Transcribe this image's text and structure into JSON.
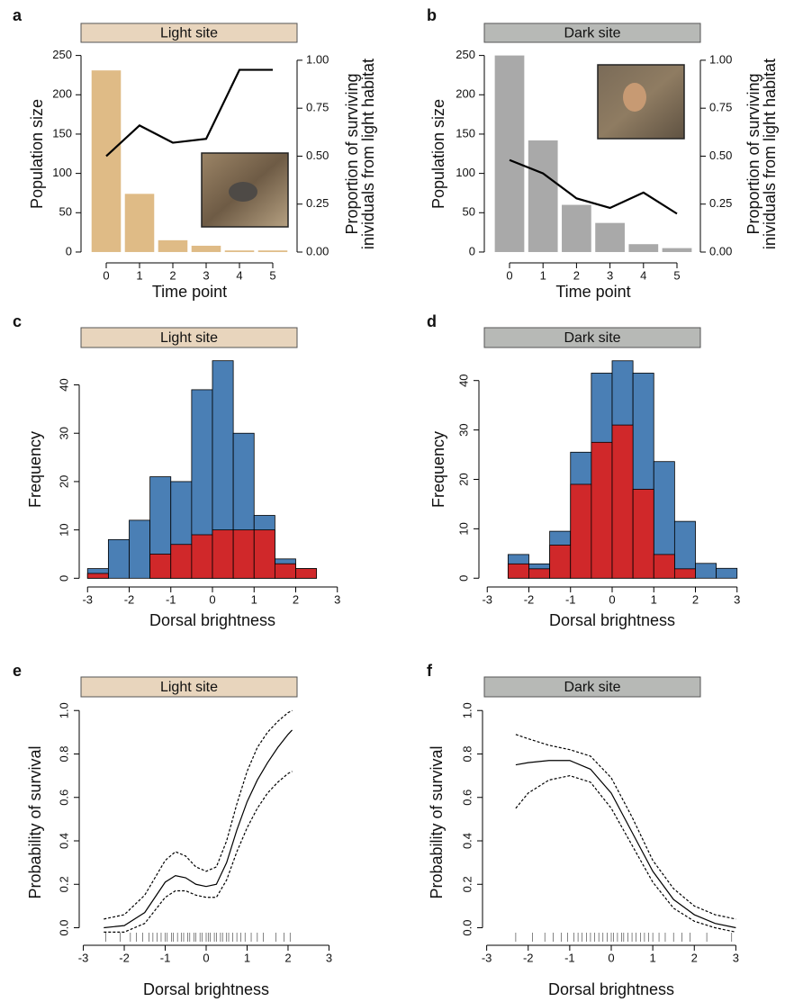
{
  "chart_data": [
    {
      "panel": "a",
      "header": "Light site",
      "header_color": "#e8d5bd",
      "type": "combo",
      "categories": [
        "0",
        "1",
        "2",
        "3",
        "4",
        "5"
      ],
      "xlabel": "Time point",
      "ylabel": "Population size",
      "y2label": [
        "Proportion of surviving",
        "inividuals from light habitat"
      ],
      "ylim": [
        -11.5,
        261
      ],
      "yticks": [
        0,
        50,
        100,
        150,
        200,
        250
      ],
      "y2lim": [
        -0.047,
        1.07
      ],
      "y2ticks": [
        {
          "value": 0,
          "label": "0.00"
        },
        {
          "value": 0.25,
          "label": "0.25"
        },
        {
          "value": 0.5,
          "label": "0.50"
        },
        {
          "value": 0.75,
          "label": "0.75"
        },
        {
          "value": 1,
          "label": "1.00"
        }
      ],
      "series": [
        {
          "type": "bar",
          "color": "#dfbb86",
          "values": [
            231,
            74,
            15,
            8,
            2,
            2
          ]
        },
        {
          "type": "line",
          "axis": "y2",
          "color": "#000000",
          "values": [
            0.5,
            0.66,
            0.57,
            0.59,
            0.95,
            0.95
          ]
        }
      ]
    },
    {
      "panel": "b",
      "header": "Dark site",
      "header_color": "#b7b9b6",
      "type": "combo",
      "categories": [
        "0",
        "1",
        "2",
        "3",
        "4",
        "5"
      ],
      "xlabel": "Time point",
      "ylabel": "Population size",
      "y2label": [
        "Proportion of surviving",
        "inividuals from light habitat"
      ],
      "ylim": [
        -11.5,
        261
      ],
      "yticks": [
        0,
        50,
        100,
        150,
        200,
        250
      ],
      "y2lim": [
        -0.047,
        1.07
      ],
      "y2ticks": [
        {
          "value": 0,
          "label": "0.00"
        },
        {
          "value": 0.25,
          "label": "0.25"
        },
        {
          "value": 0.5,
          "label": "0.50"
        },
        {
          "value": 0.75,
          "label": "0.75"
        },
        {
          "value": 1,
          "label": "1.00"
        }
      ],
      "series": [
        {
          "type": "bar",
          "color": "#a9a9a9",
          "values": [
            250,
            142,
            60,
            37,
            10,
            5
          ]
        },
        {
          "type": "line",
          "axis": "y2",
          "color": "#000000",
          "values": [
            0.48,
            0.41,
            0.28,
            0.23,
            0.31,
            0.2
          ]
        }
      ]
    },
    {
      "panel": "c",
      "header": "Light site",
      "header_color": "#e8d5bd",
      "type": "histogram",
      "xlabel": "Dorsal brightness",
      "ylabel": "Frequency",
      "bins": [
        -3,
        -2.5,
        -2,
        -1.5,
        -1,
        -0.5,
        0,
        0.5,
        1,
        1.5,
        2,
        2.5
      ],
      "xlim": [
        -3.2,
        3.2
      ],
      "xticks": [
        -3,
        -2,
        -1,
        0,
        1,
        2,
        3
      ],
      "ylim": [
        -0.5,
        45.5
      ],
      "yticks": [
        0,
        10,
        20,
        30,
        40
      ],
      "series": [
        {
          "color": "#4a7fb5",
          "values": [
            2,
            8,
            12,
            21,
            20,
            39,
            45,
            30,
            13,
            4,
            2
          ]
        },
        {
          "color": "#d0282a",
          "values": [
            1,
            0,
            0,
            5,
            7,
            9,
            10,
            10,
            10,
            3,
            2
          ]
        }
      ]
    },
    {
      "panel": "d",
      "header": "Dark site",
      "header_color": "#b7b9b6",
      "type": "histogram",
      "xlabel": "Dorsal brightness",
      "ylabel": "Frequency",
      "bins": [
        -3,
        -2.5,
        -2,
        -1.5,
        -1,
        -0.5,
        0,
        0.5,
        1,
        1.5,
        2,
        2.5,
        3
      ],
      "xlim": [
        -3.2,
        3.2
      ],
      "xticks": [
        -3,
        -2,
        -1,
        0,
        1,
        2,
        3
      ],
      "ylim": [
        -0.5,
        44.5
      ],
      "yticks": [
        0,
        10,
        20,
        30,
        40
      ],
      "series": [
        {
          "color": "#4a7fb5",
          "values": [
            0,
            4.8,
            2.9,
            9.5,
            25.5,
            41.5,
            44,
            41.5,
            23.6,
            11.5,
            3,
            2
          ]
        },
        {
          "color": "#d0282a",
          "values": [
            0,
            2.9,
            1.9,
            6.7,
            19,
            27.5,
            31,
            18,
            4.8,
            1.9,
            0,
            0
          ]
        }
      ]
    },
    {
      "panel": "e",
      "header": "Light site",
      "header_color": "#e8d5bd",
      "type": "line",
      "xlabel": "Dorsal brightness",
      "ylabel": "Probability of survival",
      "xlim": [
        -3.1,
        3.1
      ],
      "xticks": [
        -3,
        -2,
        -1,
        0,
        1,
        2,
        3
      ],
      "ylim": [
        -0.06,
        1.03
      ],
      "yticks": [
        {
          "value": 0,
          "label": "0.0"
        },
        {
          "value": 0.2,
          "label": "0.2"
        },
        {
          "value": 0.4,
          "label": "0.4"
        },
        {
          "value": 0.6,
          "label": "0.6"
        },
        {
          "value": 0.8,
          "label": "0.8"
        },
        {
          "value": 1,
          "label": "1.0"
        }
      ],
      "x": [
        -2.5,
        -2,
        -1.5,
        -1,
        -0.75,
        -0.5,
        -0.25,
        0,
        0.25,
        0.5,
        0.75,
        1,
        1.25,
        1.5,
        1.75,
        2,
        2.1
      ],
      "series": [
        {
          "color": "#000000",
          "style": "solid",
          "values": [
            0,
            0.01,
            0.07,
            0.21,
            0.24,
            0.23,
            0.2,
            0.19,
            0.2,
            0.3,
            0.45,
            0.58,
            0.68,
            0.76,
            0.83,
            0.89,
            0.91
          ]
        },
        {
          "color": "#000000",
          "style": "dashed",
          "values": [
            0.04,
            0.06,
            0.15,
            0.31,
            0.35,
            0.33,
            0.28,
            0.26,
            0.28,
            0.4,
            0.57,
            0.72,
            0.83,
            0.9,
            0.95,
            0.99,
            1.0
          ]
        },
        {
          "color": "#000000",
          "style": "dashed",
          "values": [
            -0.02,
            -0.02,
            0.02,
            0.14,
            0.17,
            0.17,
            0.15,
            0.14,
            0.14,
            0.22,
            0.35,
            0.46,
            0.55,
            0.62,
            0.67,
            0.71,
            0.72
          ]
        }
      ],
      "rug": [
        -2.45,
        -2.1,
        -1.85,
        -1.7,
        -1.55,
        -1.4,
        -1.3,
        -1.2,
        -1.1,
        -1.0,
        -0.95,
        -0.85,
        -0.8,
        -0.7,
        -0.6,
        -0.55,
        -0.45,
        -0.4,
        -0.3,
        -0.25,
        -0.15,
        -0.1,
        0,
        0.05,
        0.1,
        0.2,
        0.25,
        0.35,
        0.4,
        0.5,
        0.55,
        0.65,
        0.75,
        0.85,
        0.95,
        1.1,
        1.25,
        1.4,
        1.7,
        1.9,
        2.05
      ]
    },
    {
      "panel": "f",
      "header": "Dark site",
      "header_color": "#b7b9b6",
      "type": "line",
      "xlabel": "Dorsal brightness",
      "ylabel": "Probability of survival",
      "xlim": [
        -3.1,
        3.1
      ],
      "xticks": [
        -3,
        -2,
        -1,
        0,
        1,
        2,
        3
      ],
      "ylim": [
        -0.06,
        1.03
      ],
      "yticks": [
        {
          "value": 0,
          "label": "0.0"
        },
        {
          "value": 0.2,
          "label": "0.2"
        },
        {
          "value": 0.4,
          "label": "0.4"
        },
        {
          "value": 0.6,
          "label": "0.6"
        },
        {
          "value": 0.8,
          "label": "0.8"
        },
        {
          "value": 1,
          "label": "1.0"
        }
      ],
      "x": [
        -2.3,
        -2,
        -1.5,
        -1,
        -0.5,
        0,
        0.5,
        1,
        1.5,
        2,
        2.5,
        3
      ],
      "series": [
        {
          "color": "#000000",
          "style": "solid",
          "values": [
            0.75,
            0.76,
            0.77,
            0.77,
            0.73,
            0.62,
            0.44,
            0.26,
            0.13,
            0.06,
            0.02,
            0.0
          ]
        },
        {
          "color": "#000000",
          "style": "dashed",
          "values": [
            0.89,
            0.87,
            0.84,
            0.82,
            0.79,
            0.69,
            0.51,
            0.31,
            0.18,
            0.1,
            0.06,
            0.04
          ]
        },
        {
          "color": "#000000",
          "style": "dashed",
          "values": [
            0.55,
            0.62,
            0.68,
            0.7,
            0.67,
            0.55,
            0.38,
            0.21,
            0.09,
            0.03,
            0.0,
            -0.02
          ]
        }
      ],
      "rug": [
        -2.3,
        -1.9,
        -1.6,
        -1.4,
        -1.2,
        -1.05,
        -0.9,
        -0.8,
        -0.7,
        -0.6,
        -0.5,
        -0.4,
        -0.3,
        -0.2,
        -0.1,
        0,
        0.05,
        0.15,
        0.25,
        0.3,
        0.4,
        0.5,
        0.6,
        0.7,
        0.8,
        0.9,
        1.0,
        1.15,
        1.3,
        1.5,
        1.7,
        1.9,
        2.3,
        2.9
      ]
    }
  ]
}
